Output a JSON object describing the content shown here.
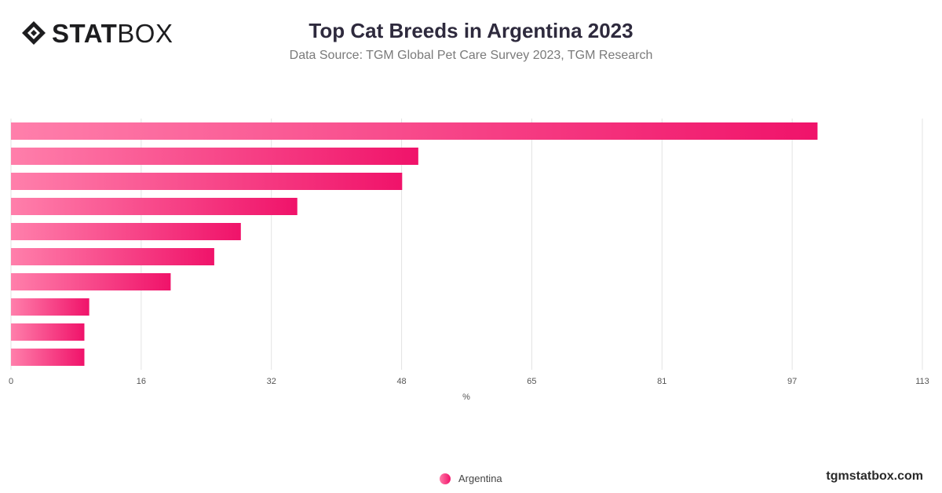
{
  "brand": {
    "logo_bold": "STAT",
    "logo_light": "BOX",
    "site": "tgmstatbox.com"
  },
  "colors": {
    "bar_start": "#ff7fab",
    "bar_end": "#f0136a",
    "grid": "#e3e3e3",
    "axis_text": "#555555"
  },
  "chart_data": {
    "type": "bar",
    "orientation": "horizontal",
    "title": "Top Cat Breeds in Argentina 2023",
    "subtitle": "Data Source: TGM Global Pet Care Survey 2023, TGM Research",
    "xlabel": "%",
    "xlim": [
      0,
      113
    ],
    "x_ticks": [
      "0",
      "16",
      "32",
      "48",
      "65",
      "81",
      "97",
      "113"
    ],
    "categories": [
      "",
      "",
      "",
      "",
      "",
      "",
      "",
      "",
      "",
      ""
    ],
    "series": [
      {
        "name": "Argentina",
        "values": [
          100,
          50.5,
          48.5,
          35.5,
          28.5,
          25.2,
          19.8,
          9.7,
          9.1,
          9.1
        ]
      }
    ],
    "grid": true,
    "legend": "bottom-center"
  }
}
